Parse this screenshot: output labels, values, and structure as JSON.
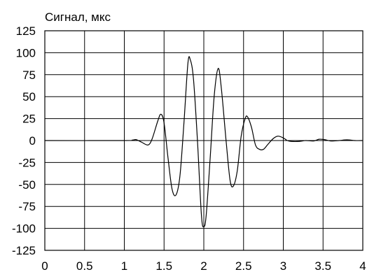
{
  "chart_data": {
    "type": "line",
    "title": "",
    "ylabel": "Сигнал, мкс",
    "xlabel": "",
    "xlim": [
      0,
      4
    ],
    "ylim": [
      -125,
      125
    ],
    "grid": true,
    "x_ticks": [
      "0",
      "0.5",
      "1",
      "1.5",
      "2",
      "2.5",
      "3",
      "3.5",
      "4"
    ],
    "y_ticks": [
      "125",
      "100",
      "75",
      "50",
      "25",
      "0",
      "-25",
      "-50",
      "-75",
      "-100",
      "-125"
    ],
    "series": [
      {
        "color": "#000000",
        "points": [
          [
            0,
            0
          ],
          [
            1.0,
            0
          ],
          [
            1.1,
            0.5
          ],
          [
            1.15,
            1
          ],
          [
            1.22,
            -2
          ],
          [
            1.3,
            -5
          ],
          [
            1.35,
            2
          ],
          [
            1.42,
            22
          ],
          [
            1.46,
            30
          ],
          [
            1.5,
            20
          ],
          [
            1.55,
            -20
          ],
          [
            1.6,
            -55
          ],
          [
            1.65,
            -62
          ],
          [
            1.7,
            -40
          ],
          [
            1.75,
            20
          ],
          [
            1.8,
            88
          ],
          [
            1.83,
            92
          ],
          [
            1.87,
            70
          ],
          [
            1.92,
            0
          ],
          [
            1.97,
            -85
          ],
          [
            2.0,
            -98
          ],
          [
            2.03,
            -85
          ],
          [
            2.08,
            -20
          ],
          [
            2.13,
            50
          ],
          [
            2.18,
            82
          ],
          [
            2.22,
            60
          ],
          [
            2.28,
            0
          ],
          [
            2.33,
            -45
          ],
          [
            2.37,
            -52
          ],
          [
            2.42,
            -35
          ],
          [
            2.47,
            5
          ],
          [
            2.52,
            25
          ],
          [
            2.55,
            27
          ],
          [
            2.6,
            15
          ],
          [
            2.65,
            -5
          ],
          [
            2.7,
            -10
          ],
          [
            2.75,
            -10
          ],
          [
            2.8,
            -5
          ],
          [
            2.87,
            2
          ],
          [
            2.93,
            5
          ],
          [
            3.0,
            3
          ],
          [
            3.05,
            0
          ],
          [
            3.1,
            -1
          ],
          [
            3.2,
            -1
          ],
          [
            3.28,
            0
          ],
          [
            3.38,
            -0.5
          ],
          [
            3.45,
            1.5
          ],
          [
            3.52,
            1
          ],
          [
            3.6,
            -0.5
          ],
          [
            3.7,
            0
          ],
          [
            3.8,
            0.8
          ],
          [
            3.9,
            0
          ],
          [
            4.0,
            0
          ]
        ]
      }
    ]
  }
}
